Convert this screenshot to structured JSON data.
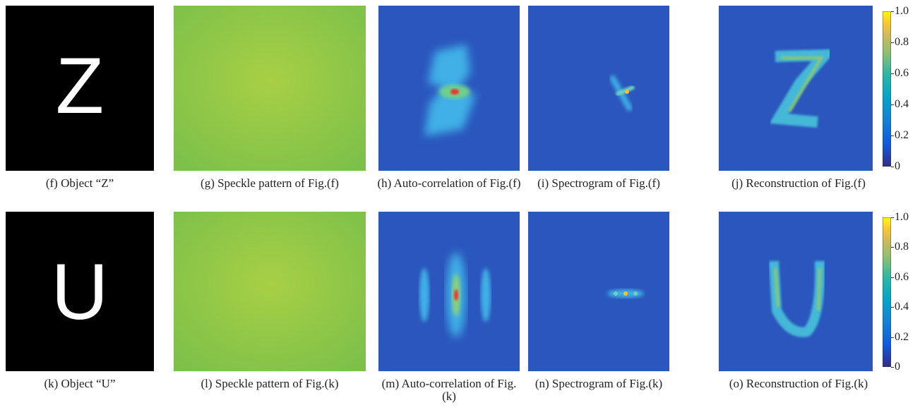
{
  "rows": [
    {
      "letter": "Z",
      "captions": [
        "(f) Object “Z”",
        "(g) Speckle pattern of Fig.(f)",
        "(h) Auto-correlation of Fig.(f)",
        "(i) Spectrogram of Fig.(f)",
        "(j) Reconstruction of Fig.(f)"
      ]
    },
    {
      "letter": "U",
      "captions": [
        "(k) Object “U”",
        "(l) Speckle pattern of Fig.(k)",
        "(m) Auto-correlation of Fig.(k)",
        "(n) Spectrogram of Fig.(k)",
        "(o) Reconstruction of Fig.(k)"
      ]
    }
  ],
  "colorbar": {
    "lim": [
      0,
      1
    ],
    "ticks": [
      0,
      0.2,
      0.4,
      0.6,
      0.8,
      {
        "value": 1,
        "label": "1.0"
      }
    ]
  }
}
